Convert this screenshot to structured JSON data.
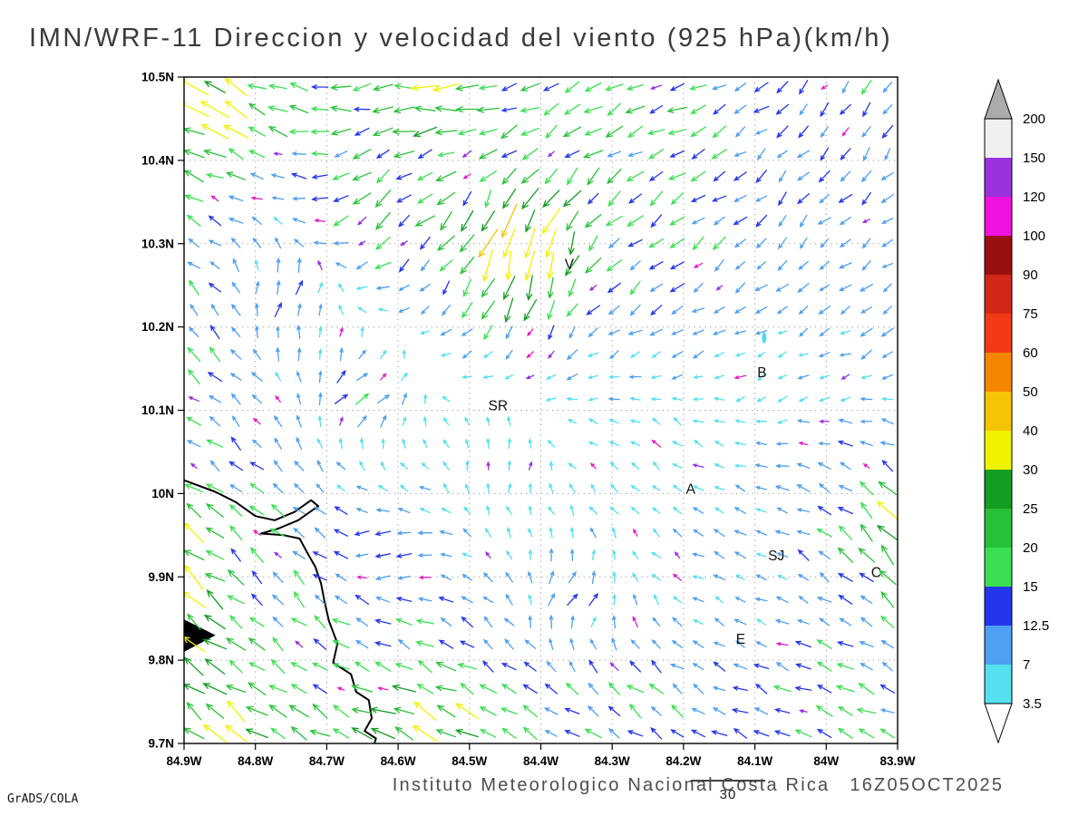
{
  "title": "IMN/WRF-11 Direccion y velocidad del viento (925 hPa)(km/h)",
  "credit": "GrADS/COLA",
  "footer": {
    "institute": "Instituto Meteorologico Nacional Costa Rica",
    "timestamp": "16Z05OCT2025"
  },
  "reference_vector": {
    "label": "30"
  },
  "chart_data": {
    "type": "quiver",
    "title": "IMN/WRF-11 Direccion y velocidad del viento (925 hPa)(km/h)",
    "units": "km/h",
    "pressure_level": "925 hPa",
    "grid": "dotted",
    "x_range": [
      84.9,
      83.9
    ],
    "y_range": [
      9.7,
      10.5
    ],
    "x_ticks": {
      "labels": [
        "84.9W",
        "84.8W",
        "84.7W",
        "84.6W",
        "84.5W",
        "84.4W",
        "84.3W",
        "84.2W",
        "84.1W",
        "84W",
        "83.9W"
      ],
      "values": [
        84.9,
        84.8,
        84.7,
        84.6,
        84.5,
        84.4,
        84.3,
        84.2,
        84.1,
        84.0,
        83.9
      ]
    },
    "y_ticks": {
      "labels": [
        "9.7N",
        "9.8N",
        "9.9N",
        "10N",
        "10.1N",
        "10.2N",
        "10.3N",
        "10.4N",
        "10.5N"
      ],
      "values": [
        9.7,
        9.8,
        9.9,
        10.0,
        10.1,
        10.2,
        10.3,
        10.4,
        10.5
      ]
    },
    "colorbar": {
      "levels": [
        3.5,
        7,
        12.5,
        15,
        20,
        25,
        30,
        40,
        50,
        60,
        75,
        90,
        100,
        120,
        150,
        200
      ],
      "labels": [
        "3.5",
        "7",
        "12.5",
        "15",
        "20",
        "25",
        "30",
        "40",
        "50",
        "60",
        "75",
        "90",
        "100",
        "120",
        "150",
        "200"
      ],
      "colors": [
        "#55E0F0",
        "#4FA0F2",
        "#2436EC",
        "#3BE052",
        "#28C238",
        "#149E22",
        "#F2F200",
        "#F5C402",
        "#F58602",
        "#F23B16",
        "#D22718",
        "#9A1010",
        "#F012DE",
        "#9C32DE",
        "#F0F0F0"
      ],
      "below_color": "#FFFFFF",
      "above_color": "#ABABAB"
    },
    "cities": [
      {
        "label": "V",
        "lon": 84.36,
        "lat": 10.27
      },
      {
        "label": "B",
        "lon": 84.09,
        "lat": 10.14
      },
      {
        "label": "SR",
        "lon": 84.46,
        "lat": 10.1
      },
      {
        "label": "A",
        "lon": 84.19,
        "lat": 10.0
      },
      {
        "label": "SJ",
        "lon": 84.07,
        "lat": 9.92
      },
      {
        "label": "C",
        "lon": 83.93,
        "lat": 9.9
      },
      {
        "label": "E",
        "lon": 84.12,
        "lat": 9.82
      }
    ],
    "coastline": [
      [
        [
          84.9,
          10.016
        ],
        [
          84.856,
          10.002
        ],
        [
          84.828,
          9.99
        ],
        [
          84.8,
          9.973
        ],
        [
          84.773,
          9.968
        ],
        [
          84.745,
          9.978
        ],
        [
          84.722,
          9.992
        ],
        [
          84.712,
          9.985
        ],
        [
          84.74,
          9.968
        ],
        [
          84.768,
          9.958
        ],
        [
          84.792,
          9.952
        ],
        [
          84.76,
          9.95
        ],
        [
          84.738,
          9.946
        ],
        [
          84.728,
          9.93
        ],
        [
          84.716,
          9.912
        ],
        [
          84.708,
          9.892
        ],
        [
          84.703,
          9.87
        ],
        [
          84.697,
          9.847
        ],
        [
          84.685,
          9.82
        ],
        [
          84.691,
          9.797
        ],
        [
          84.666,
          9.783
        ],
        [
          84.659,
          9.762
        ],
        [
          84.641,
          9.752
        ],
        [
          84.637,
          9.73
        ],
        [
          84.647,
          9.715
        ],
        [
          84.631,
          9.706
        ],
        [
          84.634,
          9.698
        ]
      ]
    ],
    "capes": [
      [
        [
          84.9,
          9.848
        ],
        [
          84.858,
          9.83
        ],
        [
          84.9,
          9.811
        ]
      ]
    ],
    "lakes": [
      {
        "lon": 84.087,
        "lat": 10.187,
        "rx": 2.5,
        "ry": 6
      }
    ],
    "wind_field": {
      "nx": 34,
      "ny": 30,
      "jitter_deg": 34,
      "control_points": [
        {
          "lon": 85.0,
          "lat": 9.62,
          "u": -48,
          "v": 36
        },
        {
          "lon": 84.95,
          "lat": 9.9,
          "u": -30,
          "v": 22
        },
        {
          "lon": 84.93,
          "lat": 10.17,
          "u": -14,
          "v": 10
        },
        {
          "lon": 84.88,
          "lat": 10.47,
          "u": -30,
          "v": 16
        },
        {
          "lon": 84.55,
          "lat": 10.47,
          "u": -25,
          "v": -2
        },
        {
          "lon": 84.25,
          "lat": 10.46,
          "u": -15,
          "v": -7
        },
        {
          "lon": 83.93,
          "lat": 10.46,
          "u": -6,
          "v": -11
        },
        {
          "lon": 83.9,
          "lat": 10.2,
          "u": -8,
          "v": -7
        },
        {
          "lon": 83.91,
          "lat": 9.96,
          "u": -19,
          "v": 19
        },
        {
          "lon": 84.0,
          "lat": 9.72,
          "u": -16,
          "v": 6
        },
        {
          "lon": 84.3,
          "lat": 9.74,
          "u": -13,
          "v": 9
        },
        {
          "lon": 84.55,
          "lat": 9.72,
          "u": -27,
          "v": 12
        },
        {
          "lon": 84.43,
          "lat": 10.29,
          "u": -12,
          "v": -46
        },
        {
          "lon": 84.62,
          "lat": 10.33,
          "u": -16,
          "v": -14
        },
        {
          "lon": 84.65,
          "lat": 10.12,
          "u": 12,
          "v": 10
        },
        {
          "lon": 84.45,
          "lat": 10.04,
          "u": 3,
          "v": 7
        },
        {
          "lon": 84.22,
          "lat": 10.06,
          "u": -4,
          "v": 4
        },
        {
          "lon": 84.2,
          "lat": 10.3,
          "u": -12,
          "v": -10
        },
        {
          "lon": 84.05,
          "lat": 10.34,
          "u": -7,
          "v": -8
        },
        {
          "lon": 84.75,
          "lat": 9.89,
          "u": -10,
          "v": 11
        },
        {
          "lon": 84.35,
          "lat": 9.88,
          "u": 8,
          "v": 10
        },
        {
          "lon": 84.1,
          "lat": 9.88,
          "u": -6,
          "v": 2
        },
        {
          "lon": 84.62,
          "lat": 9.93,
          "u": -12,
          "v": -3
        },
        {
          "lon": 84.08,
          "lat": 10.15,
          "u": -3,
          "v": -3
        },
        {
          "lon": 84.75,
          "lat": 10.24,
          "u": 6,
          "v": 14
        }
      ]
    }
  }
}
